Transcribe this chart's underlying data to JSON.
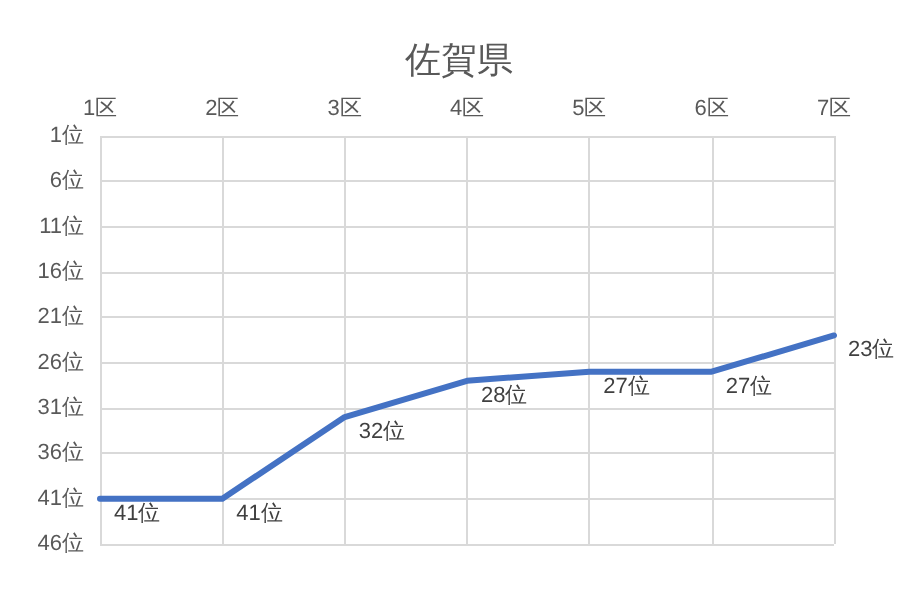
{
  "chart_data": {
    "type": "line",
    "title": "佐賀県",
    "categories": [
      "1区",
      "2区",
      "3区",
      "4区",
      "5区",
      "6区",
      "7区"
    ],
    "series": [
      {
        "color": "#4472c4",
        "values": [
          41,
          41,
          32,
          28,
          27,
          27,
          23
        ],
        "value_labels": [
          "41位",
          "41位",
          "32位",
          "28位",
          "27位",
          "27位",
          "23位"
        ]
      }
    ],
    "ylim": [
      46,
      1
    ],
    "yticks": [
      {
        "value": 1,
        "label": "1位"
      },
      {
        "value": 6,
        "label": "6位"
      },
      {
        "value": 11,
        "label": "11位"
      },
      {
        "value": 16,
        "label": "16位"
      },
      {
        "value": 21,
        "label": "21位"
      },
      {
        "value": 26,
        "label": "26位"
      },
      {
        "value": 31,
        "label": "31位"
      },
      {
        "value": 36,
        "label": "36位"
      },
      {
        "value": 41,
        "label": "41位"
      },
      {
        "value": 46,
        "label": "46位"
      }
    ],
    "grid": true,
    "marker": "none",
    "line_style": "solid"
  }
}
